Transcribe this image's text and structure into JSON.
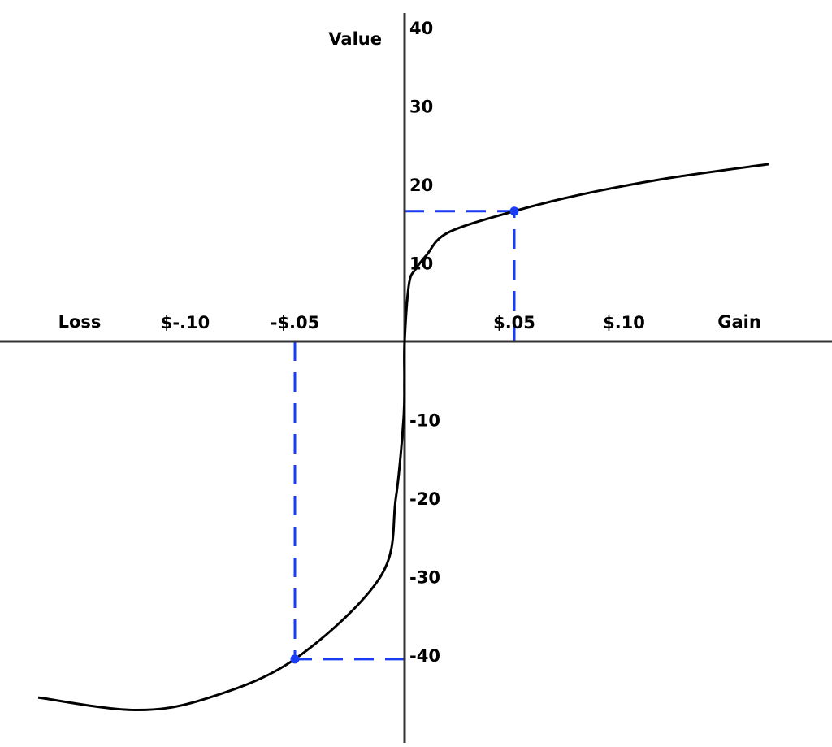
{
  "chart_data": {
    "type": "line",
    "ylabel": "Value",
    "x_left_label": "Loss",
    "x_right_label": "Gain",
    "x_ticks": [
      {
        "value": -0.1,
        "label": "$-.10"
      },
      {
        "value": -0.05,
        "label": "-$.05"
      },
      {
        "value": 0.05,
        "label": "$.05"
      },
      {
        "value": 0.1,
        "label": "$.10"
      }
    ],
    "y_ticks": [
      {
        "value": 40,
        "label": "40"
      },
      {
        "value": 30,
        "label": "30"
      },
      {
        "value": 20,
        "label": "20"
      },
      {
        "value": 10,
        "label": "10"
      },
      {
        "value": -10,
        "label": "-10"
      },
      {
        "value": -20,
        "label": "-20"
      },
      {
        "value": -30,
        "label": "-30"
      },
      {
        "value": -40,
        "label": "-40"
      }
    ],
    "xlim": [
      -0.18,
      0.19
    ],
    "ylim": [
      -51,
      42
    ],
    "grid": false,
    "curve": {
      "x": [
        -0.167,
        -0.123,
        -0.09,
        -0.05,
        -0.011,
        -0.004,
        -0.0005,
        -0.0001,
        0,
        0.002,
        0.005,
        0.01,
        0.02,
        0.05,
        0.08,
        0.12,
        0.166
      ],
      "y": [
        -45.4,
        -47,
        -45.5,
        -40.5,
        -30,
        -20,
        -10,
        -5,
        0,
        7.3,
        9.2,
        11.0,
        13.9,
        16.6,
        18.7,
        20.8,
        22.6
      ]
    },
    "highlighted_points": [
      {
        "x": 0.05,
        "y": 16.6
      },
      {
        "x": -0.05,
        "y": -40.5
      }
    ],
    "colors": {
      "curve": "#000000",
      "highlight": "#1a3cf5",
      "axes": "#333333"
    }
  }
}
